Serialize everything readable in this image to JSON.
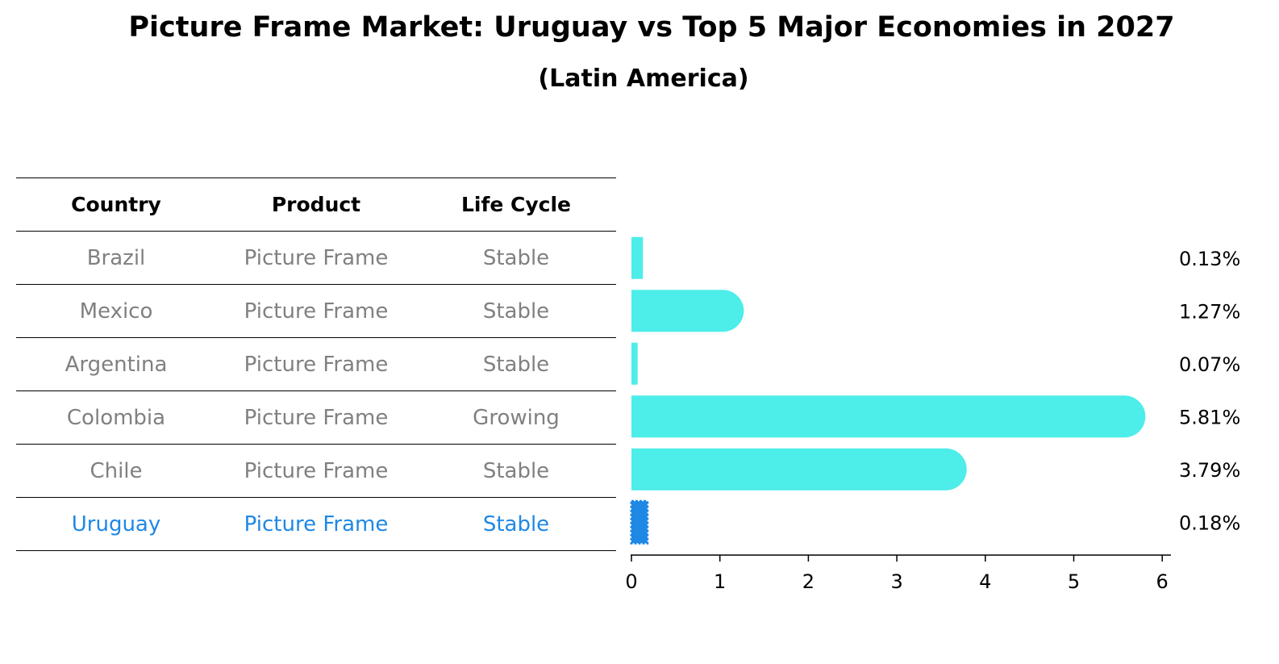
{
  "title": "Picture Frame Market: Uruguay vs Top 5 Major Economies in 2027",
  "subtitle": "(Latin America)",
  "table": {
    "headers": [
      "Country",
      "Product",
      "Life Cycle"
    ],
    "rows": [
      {
        "country": "Brazil",
        "product": "Picture Frame",
        "life_cycle": "Stable",
        "highlight": false
      },
      {
        "country": "Mexico",
        "product": "Picture Frame",
        "life_cycle": "Stable",
        "highlight": false
      },
      {
        "country": "Argentina",
        "product": "Picture Frame",
        "life_cycle": "Stable",
        "highlight": false
      },
      {
        "country": "Colombia",
        "product": "Picture Frame",
        "life_cycle": "Growing",
        "highlight": false
      },
      {
        "country": "Chile",
        "product": "Picture Frame",
        "life_cycle": "Stable",
        "highlight": false
      },
      {
        "country": "Uruguay",
        "product": "Picture Frame",
        "life_cycle": "Stable",
        "highlight": true
      }
    ]
  },
  "chart_data": {
    "type": "bar",
    "orientation": "horizontal",
    "categories": [
      "Brazil",
      "Mexico",
      "Argentina",
      "Colombia",
      "Chile",
      "Uruguay"
    ],
    "values": [
      0.13,
      1.27,
      0.07,
      5.81,
      3.79,
      0.18
    ],
    "value_labels": [
      "0.13%",
      "1.27%",
      "0.07%",
      "5.81%",
      "3.79%",
      "0.18%"
    ],
    "xlim": [
      0,
      6
    ],
    "xticks": [
      0,
      1,
      2,
      3,
      4,
      5,
      6
    ],
    "xlabel": "",
    "ylabel": "",
    "grid": false,
    "colors": {
      "default": "#4dede9",
      "highlight": "#1e88e5"
    },
    "highlight_category": "Uruguay"
  }
}
